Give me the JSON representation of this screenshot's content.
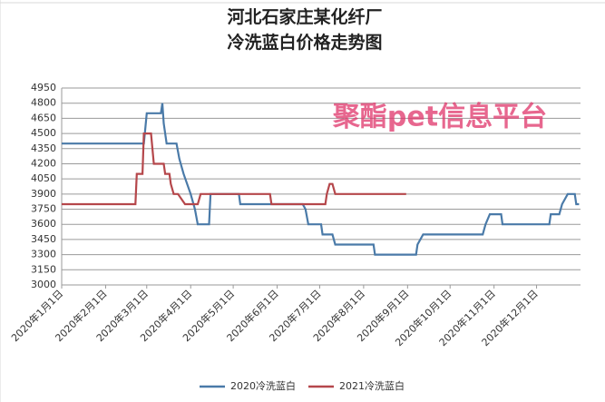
{
  "chart_data": {
    "type": "line",
    "title": [
      "河北石家庄某化纤厂",
      "冷洗蓝白价格走势图"
    ],
    "annotation": "聚酯pet信息平台",
    "ylim": [
      3000,
      4950
    ],
    "yticks": [
      3000,
      3150,
      3300,
      3450,
      3600,
      3750,
      3900,
      4050,
      4200,
      4350,
      4500,
      4650,
      4800,
      4950
    ],
    "xlim": [
      "2020-01-01",
      "2020-12-31"
    ],
    "xticks": [
      {
        "value": "2020-01-01",
        "label": "2020年1月1日"
      },
      {
        "value": "2020-02-01",
        "label": "2020年2月1日"
      },
      {
        "value": "2020-03-01",
        "label": "2020年3月1日"
      },
      {
        "value": "2020-04-01",
        "label": "2020年4月1日"
      },
      {
        "value": "2020-05-01",
        "label": "2020年5月1日"
      },
      {
        "value": "2020-06-01",
        "label": "2020年6月1日"
      },
      {
        "value": "2020-07-01",
        "label": "2020年7月1日"
      },
      {
        "value": "2020-08-01",
        "label": "2020年8月1日"
      },
      {
        "value": "2020-09-01",
        "label": "2020年9月1日"
      },
      {
        "value": "2020-10-01",
        "label": "2020年10月1日"
      },
      {
        "value": "2020-11-01",
        "label": "2020年11月1日"
      },
      {
        "value": "2020-12-01",
        "label": "2020年12月1日"
      }
    ],
    "grid": true,
    "legend": "bottom",
    "series": [
      {
        "name": "2020冷洗蓝白",
        "color": "#4a7aa8",
        "x": [
          "2020-01-01",
          "2020-02-28",
          "2020-03-01",
          "2020-03-11",
          "2020-03-12",
          "2020-03-13",
          "2020-03-15",
          "2020-03-22",
          "2020-03-24",
          "2020-03-27",
          "2020-04-01",
          "2020-04-04",
          "2020-04-06",
          "2020-04-14",
          "2020-04-15",
          "2020-05-05",
          "2020-05-06",
          "2020-06-19",
          "2020-06-21",
          "2020-06-23",
          "2020-07-02",
          "2020-07-03",
          "2020-07-10",
          "2020-07-12",
          "2020-08-08",
          "2020-08-09",
          "2020-09-07",
          "2020-09-08",
          "2020-09-12",
          "2020-10-24",
          "2020-10-26",
          "2020-10-29",
          "2020-11-06",
          "2020-11-07",
          "2020-12-10",
          "2020-12-11",
          "2020-12-17",
          "2020-12-19",
          "2020-12-23",
          "2020-12-28",
          "2020-12-29",
          "2020-12-31"
        ],
        "values": [
          4400,
          4400,
          4700,
          4700,
          4800,
          4600,
          4400,
          4400,
          4250,
          4100,
          3900,
          3750,
          3600,
          3600,
          3900,
          3900,
          3800,
          3800,
          3750,
          3600,
          3600,
          3500,
          3500,
          3400,
          3400,
          3300,
          3300,
          3400,
          3500,
          3500,
          3600,
          3700,
          3700,
          3600,
          3600,
          3700,
          3700,
          3800,
          3900,
          3900,
          3800,
          3800
        ]
      },
      {
        "name": "2021冷洗蓝白",
        "color": "#b5474b",
        "x": [
          "2021-01-01",
          "2021-02-22",
          "2021-02-23",
          "2021-02-27",
          "2021-02-28",
          "2021-03-04",
          "2021-03-06",
          "2021-03-13",
          "2021-03-14",
          "2021-03-17",
          "2021-03-18",
          "2021-03-20",
          "2021-03-23",
          "2021-03-28",
          "2021-04-06",
          "2021-04-08",
          "2021-05-27",
          "2021-05-28",
          "2021-07-05",
          "2021-07-06",
          "2021-07-08",
          "2021-07-10",
          "2021-07-12",
          "2021-08-31"
        ],
        "values": [
          3800,
          3800,
          4100,
          4100,
          4500,
          4500,
          4200,
          4200,
          4100,
          4100,
          4000,
          3900,
          3900,
          3800,
          3800,
          3900,
          3900,
          3800,
          3800,
          3900,
          4000,
          4000,
          3900,
          3900
        ]
      }
    ]
  }
}
